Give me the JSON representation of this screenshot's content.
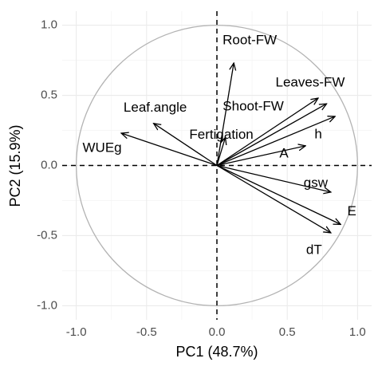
{
  "chart_data": {
    "type": "vector",
    "xlabel": "PC1 (48.7%)",
    "ylabel": "PC2 (15.9%)",
    "categories": [
      "Root-FW",
      "Leaves-FW",
      "Shoot-FW",
      "h",
      "Fertigation",
      "A",
      "Leaf.angle",
      "WUEg",
      "gsw",
      "E",
      "dT"
    ],
    "x": [
      0.12,
      0.72,
      0.78,
      0.84,
      0.06,
      0.63,
      -0.45,
      -0.68,
      0.81,
      0.88,
      0.81
    ],
    "values": [
      0.73,
      0.48,
      0.44,
      0.35,
      0.2,
      0.14,
      0.3,
      0.23,
      -0.19,
      -0.42,
      -0.48
    ],
    "color": "#000000",
    "xlim": [
      -1.1,
      1.1
    ],
    "ylim": [
      -1.1,
      1.1
    ],
    "xticks": [
      {
        "value": -1,
        "label": "-1.0"
      },
      -0.5,
      {
        "value": 0,
        "label": "0.0"
      },
      0.5,
      {
        "value": 1,
        "label": "1.0"
      }
    ],
    "yticks": [
      {
        "value": -1,
        "label": "-1.0"
      },
      -0.5,
      {
        "value": 0,
        "label": "0.0"
      },
      0.5,
      {
        "value": 1,
        "label": "1.0"
      }
    ],
    "grid": true
  }
}
